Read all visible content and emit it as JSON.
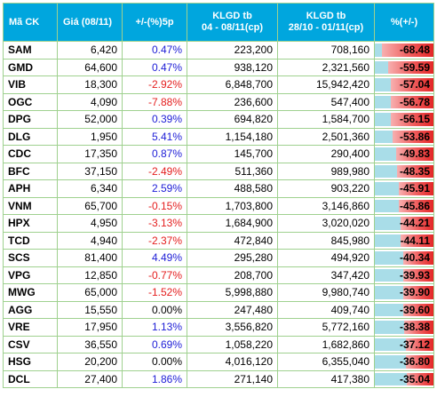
{
  "header": {
    "code": "Mã CK",
    "price": "Giá (08/11)",
    "change": "+/-(%)5p",
    "vol_recent_line1": "KLGD tb",
    "vol_recent_line2": "04 - 08/11(cp)",
    "vol_prev_line1": "KLGD tb",
    "vol_prev_line2": "28/10 - 01/11(cp)",
    "diff": "%(+/-)"
  },
  "colors": {
    "header_bg": "#00a6de",
    "positive_text": "#1d1dd6",
    "negative_text": "#e41e1e",
    "bar_red": "#e32626",
    "bar_cyan": "#a9dde8",
    "grid": "#9fd18f"
  },
  "rows": [
    {
      "code": "SAM",
      "price": "6,420",
      "change": "0.47%",
      "dir": "pos",
      "vol_recent": "223,200",
      "vol_prev": "708,160",
      "diff": "-68.48",
      "diff_value": -68.48
    },
    {
      "code": "GMD",
      "price": "64,600",
      "change": "0.47%",
      "dir": "pos",
      "vol_recent": "938,120",
      "vol_prev": "2,321,560",
      "diff": "-59.59",
      "diff_value": -59.59
    },
    {
      "code": "VIB",
      "price": "18,300",
      "change": "-2.92%",
      "dir": "neg",
      "vol_recent": "6,848,700",
      "vol_prev": "15,942,420",
      "diff": "-57.04",
      "diff_value": -57.04
    },
    {
      "code": "OGC",
      "price": "4,090",
      "change": "-7.88%",
      "dir": "neg",
      "vol_recent": "236,600",
      "vol_prev": "547,400",
      "diff": "-56.78",
      "diff_value": -56.78
    },
    {
      "code": "DPG",
      "price": "52,000",
      "change": "0.39%",
      "dir": "pos",
      "vol_recent": "694,820",
      "vol_prev": "1,584,700",
      "diff": "-56.15",
      "diff_value": -56.15
    },
    {
      "code": "DLG",
      "price": "1,950",
      "change": "5.41%",
      "dir": "pos",
      "vol_recent": "1,154,180",
      "vol_prev": "2,501,360",
      "diff": "-53.86",
      "diff_value": -53.86
    },
    {
      "code": "CDC",
      "price": "17,350",
      "change": "0.87%",
      "dir": "pos",
      "vol_recent": "145,700",
      "vol_prev": "290,400",
      "diff": "-49.83",
      "diff_value": -49.83
    },
    {
      "code": "BFC",
      "price": "37,150",
      "change": "-2.49%",
      "dir": "neg",
      "vol_recent": "511,360",
      "vol_prev": "989,980",
      "diff": "-48.35",
      "diff_value": -48.35
    },
    {
      "code": "APH",
      "price": "6,340",
      "change": "2.59%",
      "dir": "pos",
      "vol_recent": "488,580",
      "vol_prev": "903,220",
      "diff": "-45.91",
      "diff_value": -45.91
    },
    {
      "code": "VNM",
      "price": "65,700",
      "change": "-0.15%",
      "dir": "neg",
      "vol_recent": "1,703,800",
      "vol_prev": "3,146,860",
      "diff": "-45.86",
      "diff_value": -45.86
    },
    {
      "code": "HPX",
      "price": "4,950",
      "change": "-3.13%",
      "dir": "neg",
      "vol_recent": "1,684,900",
      "vol_prev": "3,020,020",
      "diff": "-44.21",
      "diff_value": -44.21
    },
    {
      "code": "TCD",
      "price": "4,940",
      "change": "-2.37%",
      "dir": "neg",
      "vol_recent": "472,840",
      "vol_prev": "845,980",
      "diff": "-44.11",
      "diff_value": -44.11
    },
    {
      "code": "SCS",
      "price": "81,400",
      "change": "4.49%",
      "dir": "pos",
      "vol_recent": "295,280",
      "vol_prev": "494,920",
      "diff": "-40.34",
      "diff_value": -40.34
    },
    {
      "code": "VPG",
      "price": "12,850",
      "change": "-0.77%",
      "dir": "neg",
      "vol_recent": "208,700",
      "vol_prev": "347,420",
      "diff": "-39.93",
      "diff_value": -39.93
    },
    {
      "code": "MWG",
      "price": "65,000",
      "change": "-1.52%",
      "dir": "neg",
      "vol_recent": "5,998,880",
      "vol_prev": "9,980,740",
      "diff": "-39.90",
      "diff_value": -39.9
    },
    {
      "code": "AGG",
      "price": "15,550",
      "change": "0.00%",
      "dir": "zero",
      "vol_recent": "247,480",
      "vol_prev": "409,740",
      "diff": "-39.60",
      "diff_value": -39.6
    },
    {
      "code": "VRE",
      "price": "17,950",
      "change": "1.13%",
      "dir": "pos",
      "vol_recent": "3,556,820",
      "vol_prev": "5,772,160",
      "diff": "-38.38",
      "diff_value": -38.38
    },
    {
      "code": "CSV",
      "price": "36,550",
      "change": "0.69%",
      "dir": "pos",
      "vol_recent": "1,058,220",
      "vol_prev": "1,682,860",
      "diff": "-37.12",
      "diff_value": -37.12
    },
    {
      "code": "HSG",
      "price": "20,200",
      "change": "0.00%",
      "dir": "zero",
      "vol_recent": "4,016,120",
      "vol_prev": "6,355,040",
      "diff": "-36.80",
      "diff_value": -36.8
    },
    {
      "code": "DCL",
      "price": "27,400",
      "change": "1.86%",
      "dir": "pos",
      "vol_recent": "271,140",
      "vol_prev": "417,380",
      "diff": "-35.04",
      "diff_value": -35.04
    }
  ]
}
